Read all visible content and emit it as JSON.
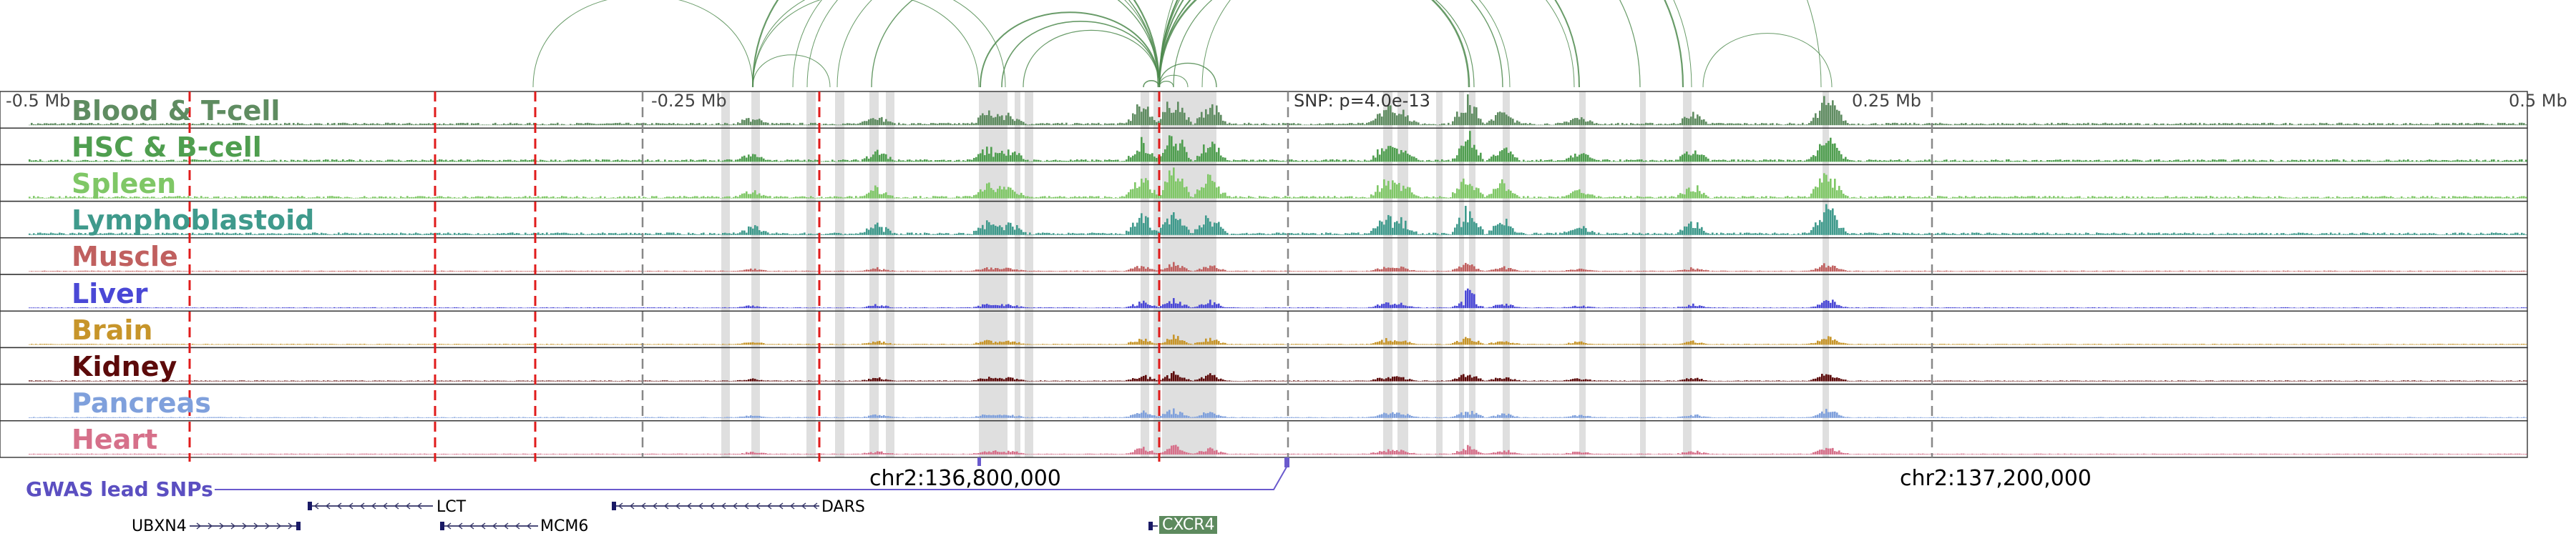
{
  "axis": {
    "ticks": [
      "-0.5 Mb",
      "-0.25 Mb",
      "0.25 Mb",
      "0.5 Mb"
    ]
  },
  "snp_annotation": "SNP: p=4.0e-13",
  "tracks": [
    {
      "name": "Blood & T-cell",
      "color": "#5f8c61"
    },
    {
      "name": "HSC & B-cell",
      "color": "#4f9e4f"
    },
    {
      "name": "Spleen",
      "color": "#7fc766"
    },
    {
      "name": "Lymphoblastoid",
      "color": "#3f9a8c"
    },
    {
      "name": "Muscle",
      "color": "#c0605f"
    },
    {
      "name": "Liver",
      "color": "#4a48d6"
    },
    {
      "name": "Brain",
      "color": "#c7952a"
    },
    {
      "name": "Kidney",
      "color": "#5c0a0a"
    },
    {
      "name": "Pancreas",
      "color": "#7fa0dc"
    },
    {
      "name": "Heart",
      "color": "#d6708a"
    }
  ],
  "coordinates": [
    "chr2:136,800,000",
    "chr2:137,200,000"
  ],
  "gwas_label": "GWAS lead SNPs",
  "genes": [
    {
      "name": "LCT"
    },
    {
      "name": "DARS"
    },
    {
      "name": "UBXN4"
    },
    {
      "name": "MCM6"
    },
    {
      "name": "CXCR4"
    }
  ],
  "colors": {
    "loop": "#4e8a4e",
    "red_dash": "#e01b1b",
    "grey_dash": "#888888",
    "highlight": "#d9d9d9",
    "gwas": "#6a5acd"
  }
}
